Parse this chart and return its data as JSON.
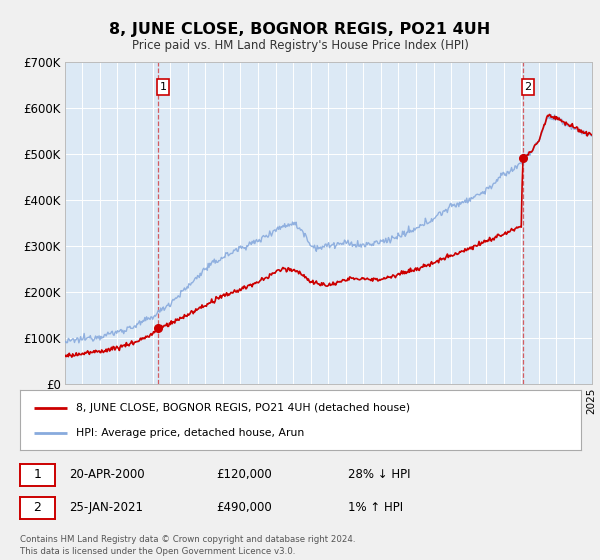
{
  "title": "8, JUNE CLOSE, BOGNOR REGIS, PO21 4UH",
  "subtitle": "Price paid vs. HM Land Registry's House Price Index (HPI)",
  "bg_color": "#dce9f5",
  "outer_bg_color": "#f0f0f0",
  "red_line_color": "#cc0000",
  "blue_line_color": "#88aadd",
  "grid_color": "#ffffff",
  "sale1_year": 2000.3,
  "sale1_price": 120000,
  "sale2_year": 2021.07,
  "sale2_price": 490000,
  "xmin": 1995,
  "xmax": 2025,
  "ymin": 0,
  "ymax": 700000,
  "yticks": [
    0,
    100000,
    200000,
    300000,
    400000,
    500000,
    600000,
    700000
  ],
  "ytick_labels": [
    "£0",
    "£100K",
    "£200K",
    "£300K",
    "£400K",
    "£500K",
    "£600K",
    "£700K"
  ],
  "legend_label1": "8, JUNE CLOSE, BOGNOR REGIS, PO21 4UH (detached house)",
  "legend_label2": "HPI: Average price, detached house, Arun",
  "annotation1_date": "20-APR-2000",
  "annotation1_price": "£120,000",
  "annotation1_hpi": "28% ↓ HPI",
  "annotation2_date": "25-JAN-2021",
  "annotation2_price": "£490,000",
  "annotation2_hpi": "1% ↑ HPI",
  "footer": "Contains HM Land Registry data © Crown copyright and database right 2024.\nThis data is licensed under the Open Government Licence v3.0."
}
